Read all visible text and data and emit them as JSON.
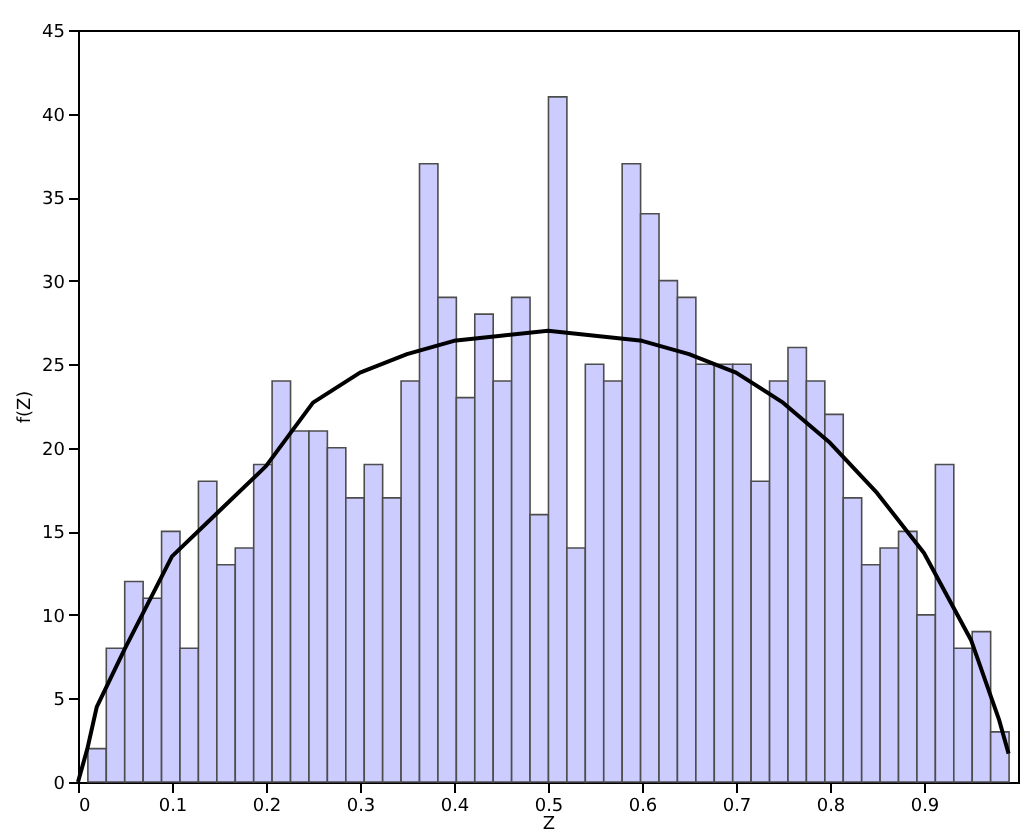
{
  "chart_data": {
    "type": "histogram",
    "xlabel": "Z",
    "ylabel": "f(Z)",
    "bins": [
      0.0105,
      0.0301,
      0.0497,
      0.0693,
      0.0889,
      0.1085,
      0.1281,
      0.1477,
      0.1673,
      0.1869,
      0.2065,
      0.2261,
      0.2457,
      0.2653,
      0.2849,
      0.3045,
      0.3241,
      0.3437,
      0.3633,
      0.3829,
      0.4025,
      0.4221,
      0.4417,
      0.4613,
      0.4809,
      0.5005,
      0.5201,
      0.5397,
      0.5593,
      0.5789,
      0.5985,
      0.6181,
      0.6377,
      0.6573,
      0.6769,
      0.6965,
      0.7161,
      0.7357,
      0.7553,
      0.7749,
      0.7945,
      0.8141,
      0.8337,
      0.8533,
      0.8729,
      0.8925,
      0.9121,
      0.9317,
      0.9513,
      0.9709,
      0.9905
    ],
    "values": [
      2,
      8,
      12,
      11,
      15,
      8,
      18,
      13,
      14,
      19,
      24,
      21,
      21,
      20,
      17,
      19,
      17,
      24,
      37,
      29,
      23,
      28,
      24,
      29,
      16,
      41,
      14,
      25,
      24,
      37,
      34,
      30,
      29,
      25,
      25,
      25,
      18,
      24,
      26,
      24,
      22,
      17,
      13,
      14,
      15,
      10,
      19,
      8,
      9,
      3
    ],
    "color": "#ccccff",
    "series": [
      {
        "type": "line",
        "color": "#000000",
        "x": [
          0,
          0.01,
          0.02,
          0.05,
          0.1,
          0.15,
          0.2,
          0.25,
          0.3,
          0.35,
          0.4,
          0.45,
          0.5,
          0.55,
          0.6,
          0.65,
          0.7,
          0.75,
          0.8,
          0.85,
          0.9,
          0.95,
          0.98,
          0.99
        ],
        "values": [
          0,
          2,
          4.5,
          8,
          13.5,
          16.2,
          18.9,
          22.7,
          24.5,
          25.6,
          26.4,
          26.7,
          27,
          26.7,
          26.4,
          25.6,
          24.5,
          22.7,
          20.3,
          17.3,
          13.7,
          8.5,
          3.7,
          1.7
        ]
      }
    ],
    "xlim": [
      0,
      1
    ],
    "ylim": [
      0,
      45
    ],
    "xticks": [
      0,
      0.1,
      0.2,
      0.3,
      0.4,
      0.5,
      0.6,
      0.7,
      0.8,
      0.9
    ],
    "yticks": [
      0,
      5,
      10,
      15,
      20,
      25,
      30,
      35,
      40,
      45
    ],
    "grid": false
  }
}
